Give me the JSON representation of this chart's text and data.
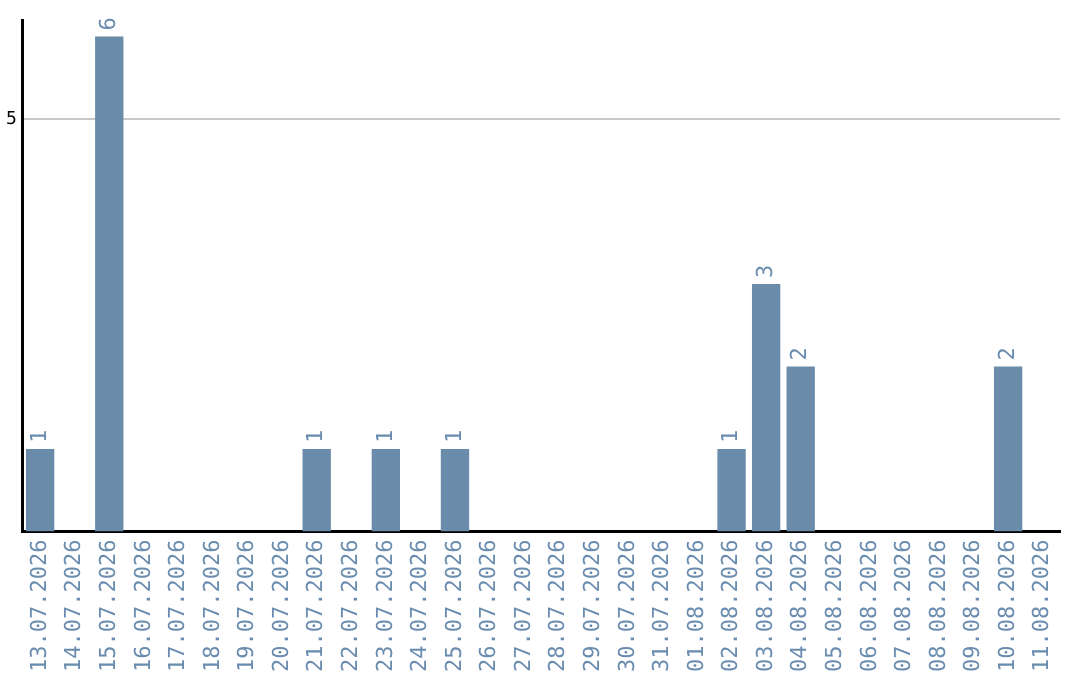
{
  "chart_data": {
    "type": "bar",
    "categories": [
      "13.07.2026",
      "14.07.2026",
      "15.07.2026",
      "16.07.2026",
      "17.07.2026",
      "18.07.2026",
      "19.07.2026",
      "20.07.2026",
      "21.07.2026",
      "22.07.2026",
      "23.07.2026",
      "24.07.2026",
      "25.07.2026",
      "26.07.2026",
      "27.07.2026",
      "28.07.2026",
      "29.07.2026",
      "30.07.2026",
      "31.07.2026",
      "01.08.2026",
      "02.08.2026",
      "03.08.2026",
      "04.08.2026",
      "05.08.2026",
      "06.08.2026",
      "07.08.2026",
      "08.08.2026",
      "09.08.2026",
      "10.08.2026",
      "11.08.2026"
    ],
    "values": [
      1,
      0,
      6,
      0,
      0,
      0,
      0,
      0,
      1,
      0,
      1,
      0,
      1,
      0,
      0,
      0,
      0,
      0,
      0,
      0,
      1,
      3,
      2,
      0,
      0,
      0,
      0,
      0,
      2,
      0
    ],
    "value_labels": [
      "1",
      null,
      "6",
      null,
      null,
      null,
      null,
      null,
      "1",
      null,
      "1",
      null,
      "1",
      null,
      null,
      null,
      null,
      null,
      null,
      null,
      "1",
      "3",
      "2",
      null,
      null,
      null,
      null,
      null,
      "2",
      null
    ],
    "color": "#6a8caa",
    "ylim": [
      0,
      6.2
    ],
    "yticks": [
      5
    ],
    "grid": "y",
    "legend": false
  }
}
